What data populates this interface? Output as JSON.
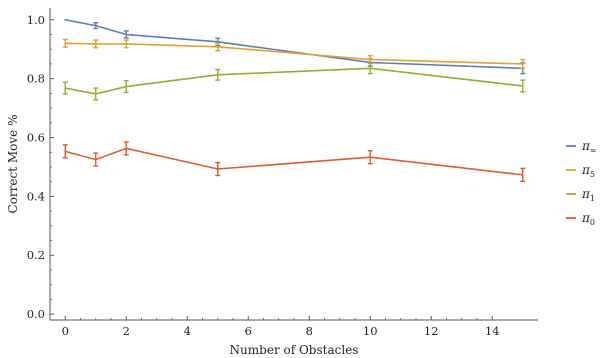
{
  "chart_data": {
    "type": "line",
    "title": "",
    "xlabel": "Number of Obstacles",
    "ylabel": "Correct Move %",
    "xlim": [
      -0.5,
      15.5
    ],
    "ylim": [
      -0.02,
      1.04
    ],
    "x_ticks": [
      "0",
      "2",
      "4",
      "6",
      "8",
      "10",
      "12",
      "14"
    ],
    "y_ticks": [
      "0.0",
      "0.2",
      "0.4",
      "0.6",
      "0.8",
      "1.0"
    ],
    "x": [
      0,
      1,
      2,
      5,
      10,
      15
    ],
    "grid": false,
    "legend_position": "right",
    "series": [
      {
        "name": "π∞",
        "base": "π",
        "sub": "∞",
        "color": "#5b7fb5",
        "values": [
          1.0,
          0.98,
          0.95,
          0.925,
          0.855,
          0.835
        ],
        "errors": [
          0.0,
          0.01,
          0.012,
          0.012,
          0.012,
          0.018
        ]
      },
      {
        "name": "π5",
        "base": "π",
        "sub": "5",
        "color": "#e0a030",
        "values": [
          0.92,
          0.918,
          0.918,
          0.908,
          0.865,
          0.85
        ],
        "errors": [
          0.013,
          0.013,
          0.013,
          0.013,
          0.013,
          0.015
        ]
      },
      {
        "name": "π1",
        "base": "π",
        "sub": "1",
        "color": "#8fb030",
        "values": [
          0.768,
          0.748,
          0.773,
          0.813,
          0.835,
          0.775
        ],
        "errors": [
          0.02,
          0.02,
          0.02,
          0.018,
          0.018,
          0.02
        ]
      },
      {
        "name": "π0",
        "base": "π",
        "sub": "0",
        "color": "#e05a30",
        "values": [
          0.553,
          0.525,
          0.563,
          0.493,
          0.533,
          0.473
        ],
        "errors": [
          0.022,
          0.022,
          0.022,
          0.022,
          0.022,
          0.022
        ]
      }
    ]
  }
}
